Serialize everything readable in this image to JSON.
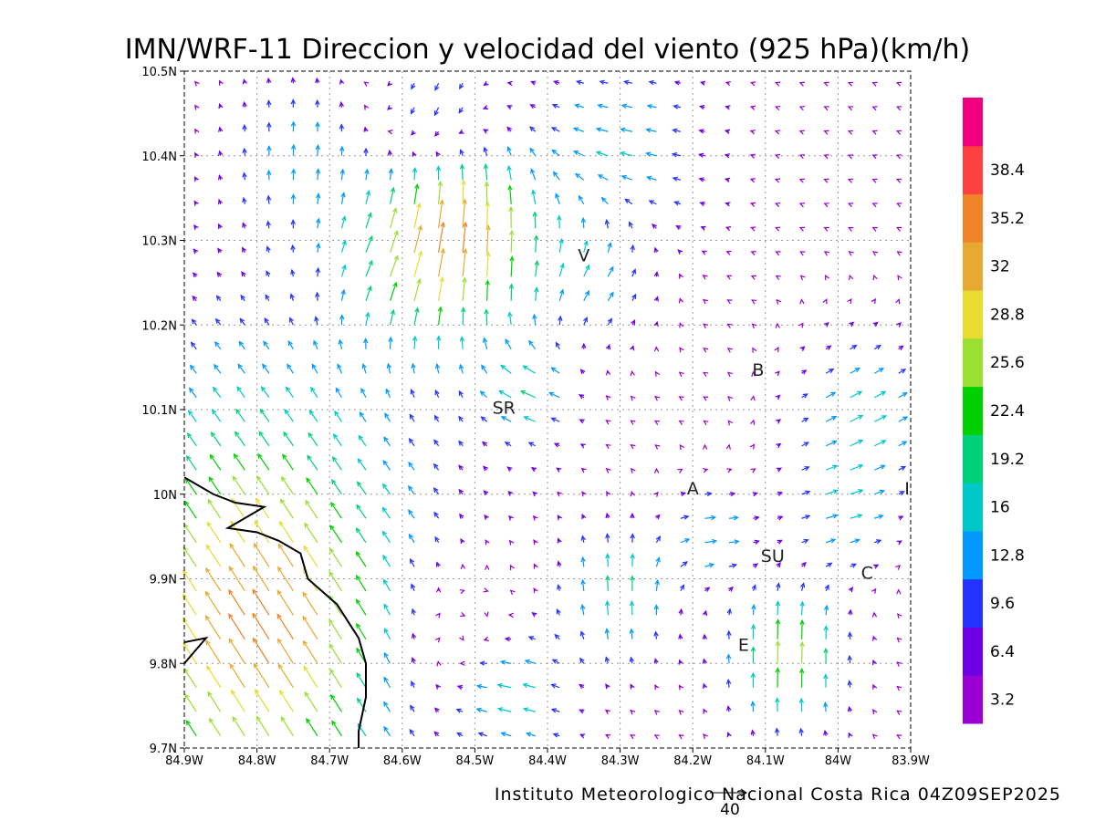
{
  "title": "IMN/WRF-11 Direccion y velocidad del viento (925 hPa)(km/h)",
  "footer": "Instituto Meteorologico Nacional Costa Rica 04Z09SEP2025",
  "reference_vector": {
    "label": "40",
    "speed": 40
  },
  "chart_data": {
    "type": "vector-field",
    "title": "IMN/WRF-11 Direccion y velocidad del viento (925 hPa)(km/h)",
    "units": "km/h",
    "level": "925 hPa",
    "x_ticks": [
      "84.9W",
      "84.8W",
      "84.7W",
      "84.6W",
      "84.5W",
      "84.4W",
      "84.3W",
      "84.2W",
      "84.1W",
      "84W",
      "83.9W"
    ],
    "y_ticks": [
      "9.7N",
      "9.8N",
      "9.9N",
      "10N",
      "10.1N",
      "10.2N",
      "10.3N",
      "10.4N",
      "10.5N"
    ],
    "xlim": [
      -84.9,
      -83.9
    ],
    "ylim": [
      9.7,
      10.5
    ],
    "colorbar": {
      "levels": [
        "3.2",
        "6.4",
        "9.6",
        "12.8",
        "16",
        "19.2",
        "22.4",
        "25.6",
        "28.8",
        "32",
        "35.2",
        "38.4"
      ],
      "colors": [
        "#9b00d3",
        "#6e00e6",
        "#2233ff",
        "#0099ff",
        "#00c8c8",
        "#00d07a",
        "#00d000",
        "#99e033",
        "#e6dc32",
        "#e6aa32",
        "#f08228",
        "#ff4040",
        "#f0007f"
      ]
    },
    "place_labels": [
      {
        "text": "V",
        "lon": -84.35,
        "lat": 10.275
      },
      {
        "text": "B",
        "lon": -84.11,
        "lat": 10.14
      },
      {
        "text": "SR",
        "lon": -84.46,
        "lat": 10.095
      },
      {
        "text": "A",
        "lon": -84.2,
        "lat": 10.0
      },
      {
        "text": "SU",
        "lon": -84.09,
        "lat": 9.92
      },
      {
        "text": "C",
        "lon": -83.96,
        "lat": 9.9
      },
      {
        "text": "E",
        "lon": -84.13,
        "lat": 9.815
      },
      {
        "text": "I",
        "lon": -83.905,
        "lat": 10.0
      }
    ],
    "coastline": [
      [
        -84.9,
        10.02
      ],
      [
        -84.86,
        10.0
      ],
      [
        -84.83,
        9.99
      ],
      [
        -84.79,
        9.985
      ],
      [
        -84.84,
        9.96
      ],
      [
        -84.8,
        9.955
      ],
      [
        -84.77,
        9.945
      ],
      [
        -84.74,
        9.93
      ],
      [
        -84.73,
        9.9
      ],
      [
        -84.69,
        9.87
      ],
      [
        -84.66,
        9.83
      ],
      [
        -84.65,
        9.8
      ],
      [
        -84.65,
        9.76
      ],
      [
        -84.66,
        9.72
      ],
      [
        -84.66,
        9.7
      ]
    ],
    "coastline_spur": [
      [
        -84.9,
        9.8
      ],
      [
        -84.87,
        9.83
      ],
      [
        -84.9,
        9.825
      ]
    ]
  }
}
